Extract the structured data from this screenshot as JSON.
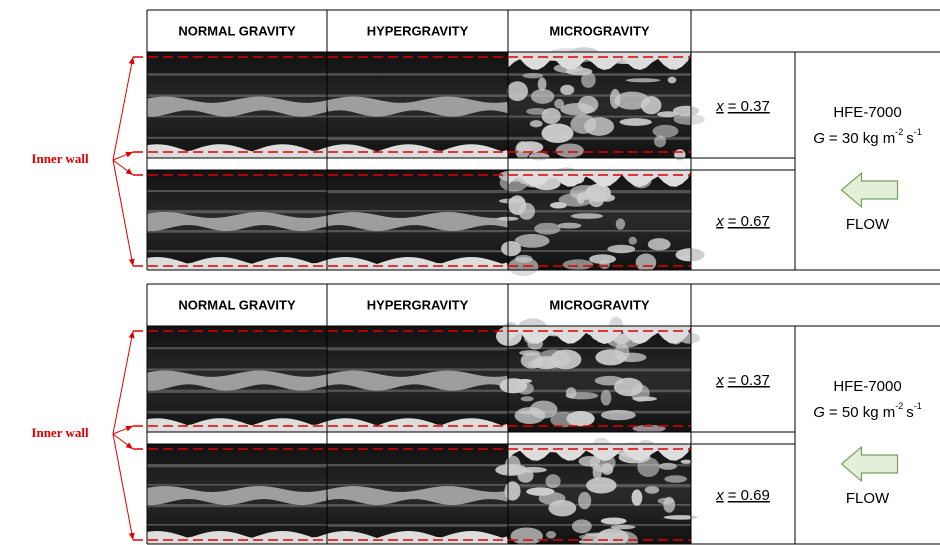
{
  "panels": [
    {
      "headers": [
        "NORMAL GRAVITY",
        "HYPERGRAVITY",
        "MICROGRAVITY"
      ],
      "rows": [
        {
          "position": [
            "x",
            "= 0.37"
          ]
        },
        {
          "position": [
            "x",
            "= 0.67"
          ]
        }
      ],
      "fluid": "HFE-7000",
      "flux": [
        "G",
        "= 30 kg m",
        "-2",
        "s",
        "-1"
      ],
      "flow": "FLOW",
      "wall_label": "Inner wall"
    },
    {
      "headers": [
        "NORMAL GRAVITY",
        "HYPERGRAVITY",
        "MICROGRAVITY"
      ],
      "rows": [
        {
          "position": [
            "x",
            "= 0.37"
          ]
        },
        {
          "position": [
            "x",
            "= 0.69"
          ]
        }
      ],
      "fluid": "HFE-7000",
      "flux": [
        "G",
        "= 50 kg m",
        "-2",
        "s",
        "-1"
      ],
      "flow": "FLOW",
      "wall_label": "Inner wall"
    }
  ]
}
